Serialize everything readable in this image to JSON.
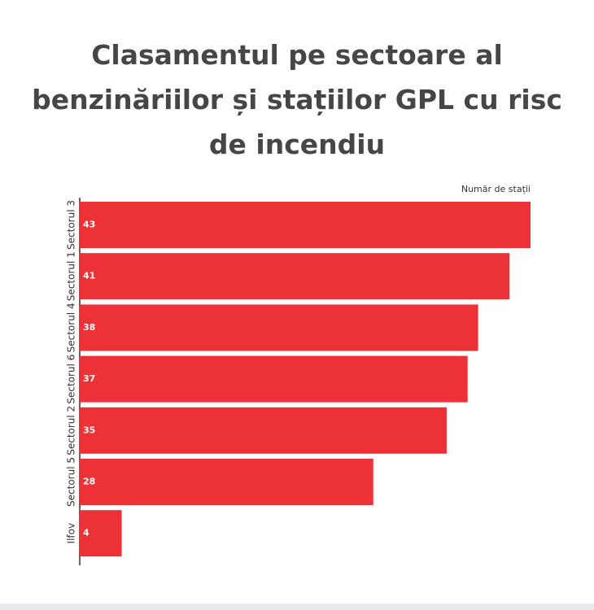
{
  "chart_data": {
    "type": "barh",
    "title": "Clasamentul pe sectoare al benzinăriilor și stațiilor GPL cu risc de incendiu",
    "x_label": "Număr de stații",
    "categories": [
      "Sectorul 3",
      "Sectorul 1",
      "Sectorul 4",
      "Sectorul 6",
      "Sectorul 2",
      "Sectorul 5",
      "Ilfov"
    ],
    "values": [
      43,
      41,
      38,
      37,
      35,
      28,
      4
    ],
    "color": "#ec3237",
    "xlim": [
      0,
      43
    ]
  }
}
